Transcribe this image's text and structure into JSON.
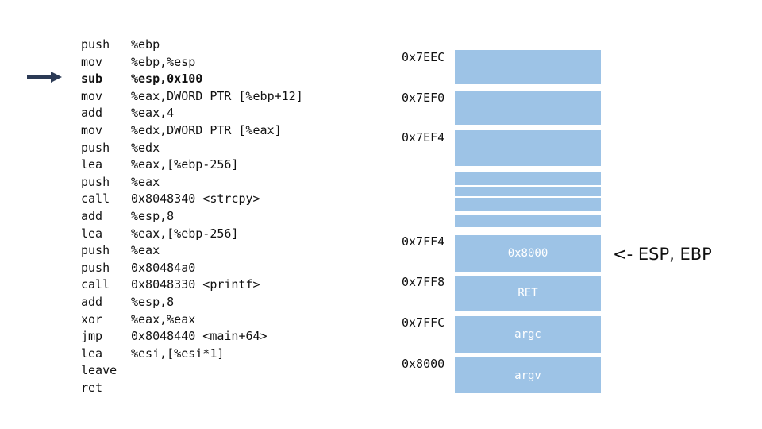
{
  "instructions": [
    {
      "op": "push",
      "args": "%ebp"
    },
    {
      "op": "mov",
      "args": "%ebp,%esp"
    },
    {
      "op": "sub",
      "args": "%esp,0x100"
    },
    {
      "op": "mov",
      "args": "%eax,DWORD PTR [%ebp+12]"
    },
    {
      "op": "add",
      "args": "%eax,4"
    },
    {
      "op": "mov",
      "args": "%edx,DWORD PTR [%eax]"
    },
    {
      "op": "push",
      "args": "%edx"
    },
    {
      "op": "lea",
      "args": "%eax,[%ebp-256]"
    },
    {
      "op": "push",
      "args": "%eax"
    },
    {
      "op": "call",
      "args": "0x8048340 <strcpy>"
    },
    {
      "op": "add",
      "args": "%esp,8"
    },
    {
      "op": "lea",
      "args": "%eax,[%ebp-256]"
    },
    {
      "op": "push",
      "args": "%eax"
    },
    {
      "op": "push",
      "args": "0x80484a0"
    },
    {
      "op": "call",
      "args": "0x8048330 <printf>"
    },
    {
      "op": "add",
      "args": "%esp,8"
    },
    {
      "op": "xor",
      "args": "%eax,%eax"
    },
    {
      "op": "jmp",
      "args": "0x8048440 <main+64>"
    },
    {
      "op": "lea",
      "args": "%esi,[%esi*1]"
    },
    {
      "op": "leave",
      "args": ""
    },
    {
      "op": "ret",
      "args": ""
    }
  ],
  "current_instruction_index": 2,
  "addresses": {
    "a0": "0x7EEC",
    "a1": "0x7EF0",
    "a2": "0x7EF4",
    "a3": "0x7FF4",
    "a4": "0x7FF8",
    "a5": "0x7FFC",
    "a6": "0x8000"
  },
  "stack_cells": {
    "c0": "0x8000",
    "c1": "RET",
    "c2": "argc",
    "c3": "argv"
  },
  "pointer_note": "<- ESP, EBP",
  "colors": {
    "stack_fill": "#9dc3e6",
    "cell_text": "#ffffff"
  }
}
